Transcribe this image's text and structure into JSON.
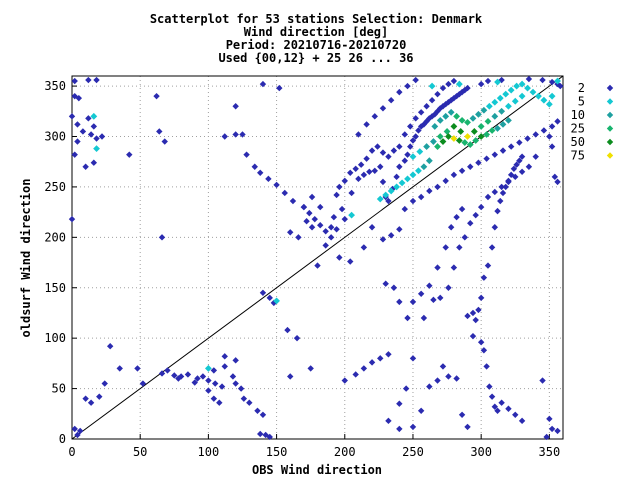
{
  "chart_data": {
    "type": "scatter",
    "title_lines": [
      "Scatterplot for   53 stations Selection: Denmark",
      "Wind direction [deg]",
      "Period: 20210716-20210720",
      "Used {00,12} + 25 26 ... 36"
    ],
    "xlabel": "OBS Wind direction",
    "ylabel": "oldsurf Wind direction",
    "xlim": [
      0,
      360
    ],
    "ylim": [
      0,
      360
    ],
    "xticks": [
      0,
      50,
      100,
      150,
      200,
      250,
      300,
      350
    ],
    "yticks": [
      0,
      50,
      100,
      150,
      200,
      250,
      300,
      350
    ],
    "grid": true,
    "diagonal_line": true,
    "legend_position": "right",
    "legend": [
      {
        "label": "2",
        "color": "#2b2bb0"
      },
      {
        "label": "5",
        "color": "#14c8d2"
      },
      {
        "label": "10",
        "color": "#1ea0a0"
      },
      {
        "label": "25",
        "color": "#18b46e"
      },
      {
        "label": "50",
        "color": "#0c8c1e"
      },
      {
        "label": "75",
        "color": "#f0e000"
      }
    ],
    "points": [
      [
        2,
        355
      ],
      [
        12,
        356
      ],
      [
        18,
        356
      ],
      [
        2,
        340
      ],
      [
        5,
        338
      ],
      [
        0,
        320
      ],
      [
        4,
        312
      ],
      [
        8,
        305
      ],
      [
        14,
        302
      ],
      [
        18,
        298
      ],
      [
        22,
        300
      ],
      [
        16,
        310
      ],
      [
        12,
        318
      ],
      [
        4,
        295
      ],
      [
        2,
        282
      ],
      [
        10,
        270
      ],
      [
        16,
        274
      ],
      [
        0,
        218
      ],
      [
        2,
        10
      ],
      [
        6,
        8
      ],
      [
        4,
        4
      ],
      [
        10,
        40
      ],
      [
        14,
        36
      ],
      [
        20,
        42
      ],
      [
        24,
        55
      ],
      [
        28,
        92
      ],
      [
        35,
        70
      ],
      [
        48,
        70
      ],
      [
        52,
        55
      ],
      [
        66,
        65
      ],
      [
        70,
        68
      ],
      [
        75,
        63
      ],
      [
        78,
        60
      ],
      [
        80,
        62
      ],
      [
        85,
        64
      ],
      [
        90,
        56
      ],
      [
        92,
        60
      ],
      [
        96,
        62
      ],
      [
        100,
        58
      ],
      [
        105,
        55
      ],
      [
        110,
        52
      ],
      [
        104,
        68
      ],
      [
        112,
        72
      ],
      [
        118,
        62
      ],
      [
        120,
        55
      ],
      [
        124,
        50
      ],
      [
        126,
        40
      ],
      [
        130,
        36
      ],
      [
        136,
        28
      ],
      [
        140,
        24
      ],
      [
        112,
        82
      ],
      [
        120,
        78
      ],
      [
        104,
        40
      ],
      [
        108,
        36
      ],
      [
        100,
        48
      ],
      [
        112,
        300
      ],
      [
        120,
        302
      ],
      [
        125,
        302
      ],
      [
        120,
        330
      ],
      [
        128,
        282
      ],
      [
        140,
        352
      ],
      [
        152,
        348
      ],
      [
        140,
        145
      ],
      [
        145,
        140
      ],
      [
        148,
        135
      ],
      [
        158,
        108
      ],
      [
        165,
        100
      ],
      [
        160,
        62
      ],
      [
        175,
        70
      ],
      [
        138,
        5
      ],
      [
        145,
        2
      ],
      [
        142,
        4
      ],
      [
        62,
        340
      ],
      [
        64,
        305
      ],
      [
        66,
        200
      ],
      [
        68,
        295
      ],
      [
        42,
        282
      ],
      [
        176,
        240
      ],
      [
        182,
        230
      ],
      [
        190,
        210
      ],
      [
        194,
        208
      ],
      [
        192,
        220
      ],
      [
        198,
        228
      ],
      [
        200,
        218
      ],
      [
        205,
        244
      ],
      [
        210,
        258
      ],
      [
        214,
        262
      ],
      [
        218,
        265
      ],
      [
        222,
        266
      ],
      [
        226,
        270
      ],
      [
        228,
        255
      ],
      [
        230,
        240
      ],
      [
        232,
        236
      ],
      [
        235,
        248
      ],
      [
        238,
        260
      ],
      [
        240,
        270
      ],
      [
        244,
        276
      ],
      [
        246,
        282
      ],
      [
        248,
        290
      ],
      [
        250,
        296
      ],
      [
        252,
        300
      ],
      [
        254,
        306
      ],
      [
        256,
        310
      ],
      [
        258,
        312
      ],
      [
        260,
        315
      ],
      [
        262,
        318
      ],
      [
        264,
        320
      ],
      [
        266,
        322
      ],
      [
        268,
        325
      ],
      [
        270,
        328
      ],
      [
        272,
        330
      ],
      [
        274,
        332
      ],
      [
        276,
        334
      ],
      [
        278,
        336
      ],
      [
        280,
        338
      ],
      [
        282,
        340
      ],
      [
        284,
        342
      ],
      [
        286,
        344
      ],
      [
        288,
        346
      ],
      [
        290,
        348
      ],
      [
        300,
        352
      ],
      [
        305,
        355
      ],
      [
        315,
        356
      ],
      [
        335,
        357
      ],
      [
        345,
        356
      ],
      [
        352,
        354
      ],
      [
        356,
        352
      ],
      [
        358,
        350
      ],
      [
        350,
        300
      ],
      [
        352,
        290
      ],
      [
        354,
        260
      ],
      [
        356,
        255
      ],
      [
        340,
        280
      ],
      [
        335,
        270
      ],
      [
        330,
        265
      ],
      [
        325,
        260
      ],
      [
        320,
        255
      ],
      [
        315,
        250
      ],
      [
        310,
        245
      ],
      [
        305,
        240
      ],
      [
        300,
        230
      ],
      [
        296,
        222
      ],
      [
        292,
        214
      ],
      [
        288,
        200
      ],
      [
        284,
        190
      ],
      [
        280,
        170
      ],
      [
        276,
        150
      ],
      [
        270,
        140
      ],
      [
        265,
        138
      ],
      [
        258,
        120
      ],
      [
        250,
        80
      ],
      [
        245,
        50
      ],
      [
        240,
        35
      ],
      [
        232,
        18
      ],
      [
        240,
        10
      ],
      [
        250,
        12
      ],
      [
        256,
        28
      ],
      [
        262,
        52
      ],
      [
        268,
        58
      ],
      [
        272,
        72
      ],
      [
        276,
        62
      ],
      [
        282,
        60
      ],
      [
        286,
        24
      ],
      [
        290,
        12
      ],
      [
        294,
        102
      ],
      [
        296,
        118
      ],
      [
        300,
        140
      ],
      [
        302,
        160
      ],
      [
        305,
        172
      ],
      [
        308,
        190
      ],
      [
        310,
        210
      ],
      [
        312,
        226
      ],
      [
        314,
        236
      ],
      [
        316,
        244
      ],
      [
        318,
        250
      ],
      [
        320,
        256
      ],
      [
        322,
        262
      ],
      [
        324,
        268
      ],
      [
        326,
        272
      ],
      [
        328,
        276
      ],
      [
        330,
        280
      ],
      [
        290,
        122
      ],
      [
        294,
        125
      ],
      [
        298,
        128
      ],
      [
        300,
        96
      ],
      [
        302,
        88
      ],
      [
        304,
        72
      ],
      [
        306,
        52
      ],
      [
        308,
        42
      ],
      [
        310,
        32
      ],
      [
        312,
        28
      ],
      [
        315,
        36
      ],
      [
        320,
        30
      ],
      [
        325,
        24
      ],
      [
        330,
        18
      ],
      [
        345,
        58
      ],
      [
        350,
        20
      ],
      [
        352,
        10
      ],
      [
        348,
        2
      ],
      [
        356,
        8
      ],
      [
        230,
        154
      ],
      [
        236,
        150
      ],
      [
        240,
        136
      ],
      [
        246,
        120
      ],
      [
        250,
        136
      ],
      [
        256,
        144
      ],
      [
        262,
        152
      ],
      [
        268,
        170
      ],
      [
        274,
        190
      ],
      [
        278,
        210
      ],
      [
        282,
        220
      ],
      [
        286,
        228
      ],
      [
        180,
        172
      ],
      [
        172,
        216
      ],
      [
        166,
        200
      ],
      [
        160,
        205
      ],
      [
        170,
        230
      ],
      [
        176,
        210
      ],
      [
        186,
        192
      ],
      [
        196,
        180
      ],
      [
        204,
        176
      ],
      [
        214,
        190
      ],
      [
        220,
        210
      ],
      [
        228,
        198
      ],
      [
        234,
        202
      ],
      [
        240,
        208
      ],
      [
        244,
        228
      ],
      [
        250,
        236
      ],
      [
        256,
        240
      ],
      [
        262,
        246
      ],
      [
        268,
        250
      ],
      [
        274,
        256
      ],
      [
        280,
        262
      ],
      [
        286,
        266
      ],
      [
        292,
        270
      ],
      [
        298,
        274
      ],
      [
        304,
        278
      ],
      [
        310,
        282
      ],
      [
        316,
        286
      ],
      [
        322,
        290
      ],
      [
        328,
        294
      ],
      [
        334,
        298
      ],
      [
        340,
        302
      ],
      [
        346,
        306
      ],
      [
        352,
        310
      ],
      [
        356,
        315
      ],
      [
        240,
        290
      ],
      [
        236,
        286
      ],
      [
        232,
        280
      ],
      [
        228,
        284
      ],
      [
        224,
        290
      ],
      [
        220,
        286
      ],
      [
        216,
        278
      ],
      [
        212,
        272
      ],
      [
        208,
        268
      ],
      [
        204,
        264
      ],
      [
        200,
        256
      ],
      [
        196,
        250
      ],
      [
        194,
        242
      ],
      [
        244,
        302
      ],
      [
        248,
        310
      ],
      [
        252,
        318
      ],
      [
        256,
        324
      ],
      [
        260,
        330
      ],
      [
        264,
        336
      ],
      [
        268,
        342
      ],
      [
        272,
        348
      ],
      [
        276,
        352
      ],
      [
        280,
        355
      ],
      [
        210,
        302
      ],
      [
        216,
        312
      ],
      [
        222,
        320
      ],
      [
        228,
        328
      ],
      [
        234,
        336
      ],
      [
        240,
        344
      ],
      [
        246,
        350
      ],
      [
        252,
        356
      ],
      [
        190,
        200
      ],
      [
        186,
        206
      ],
      [
        182,
        212
      ],
      [
        178,
        218
      ],
      [
        174,
        224
      ],
      [
        170,
        230
      ],
      [
        162,
        236
      ],
      [
        156,
        244
      ],
      [
        150,
        252
      ],
      [
        144,
        258
      ],
      [
        138,
        264
      ],
      [
        134,
        270
      ],
      [
        200,
        58
      ],
      [
        208,
        64
      ],
      [
        214,
        70
      ],
      [
        220,
        76
      ],
      [
        226,
        80
      ],
      [
        232,
        84
      ]
    ],
    "clusters": [
      {
        "x": 250,
        "y": 280,
        "n": 5
      },
      {
        "x": 255,
        "y": 285,
        "n": 5
      },
      {
        "x": 260,
        "y": 290,
        "n": 10
      },
      {
        "x": 265,
        "y": 295,
        "n": 10
      },
      {
        "x": 270,
        "y": 300,
        "n": 25
      },
      {
        "x": 275,
        "y": 305,
        "n": 25
      },
      {
        "x": 280,
        "y": 310,
        "n": 50
      },
      {
        "x": 285,
        "y": 305,
        "n": 50
      },
      {
        "x": 290,
        "y": 300,
        "n": 75
      },
      {
        "x": 295,
        "y": 305,
        "n": 50
      },
      {
        "x": 300,
        "y": 310,
        "n": 25
      },
      {
        "x": 305,
        "y": 315,
        "n": 25
      },
      {
        "x": 310,
        "y": 320,
        "n": 10
      },
      {
        "x": 315,
        "y": 325,
        "n": 10
      },
      {
        "x": 320,
        "y": 330,
        "n": 5
      },
      {
        "x": 325,
        "y": 335,
        "n": 5
      },
      {
        "x": 330,
        "y": 340,
        "n": 5
      },
      {
        "x": 268,
        "y": 290,
        "n": 25
      },
      {
        "x": 272,
        "y": 295,
        "n": 50
      },
      {
        "x": 276,
        "y": 300,
        "n": 50
      },
      {
        "x": 280,
        "y": 298,
        "n": 75
      },
      {
        "x": 284,
        "y": 296,
        "n": 50
      },
      {
        "x": 288,
        "y": 294,
        "n": 25
      },
      {
        "x": 292,
        "y": 292,
        "n": 25
      },
      {
        "x": 296,
        "y": 296,
        "n": 25
      },
      {
        "x": 300,
        "y": 300,
        "n": 50
      },
      {
        "x": 304,
        "y": 302,
        "n": 25
      },
      {
        "x": 308,
        "y": 306,
        "n": 25
      },
      {
        "x": 312,
        "y": 308,
        "n": 10
      },
      {
        "x": 316,
        "y": 312,
        "n": 10
      },
      {
        "x": 320,
        "y": 316,
        "n": 10
      },
      {
        "x": 262,
        "y": 276,
        "n": 10
      },
      {
        "x": 258,
        "y": 270,
        "n": 10
      },
      {
        "x": 254,
        "y": 266,
        "n": 5
      },
      {
        "x": 250,
        "y": 262,
        "n": 5
      },
      {
        "x": 246,
        "y": 258,
        "n": 5
      },
      {
        "x": 242,
        "y": 254,
        "n": 5
      },
      {
        "x": 238,
        "y": 250,
        "n": 5
      },
      {
        "x": 234,
        "y": 246,
        "n": 5
      },
      {
        "x": 230,
        "y": 242,
        "n": 5
      },
      {
        "x": 226,
        "y": 238,
        "n": 5
      },
      {
        "x": 266,
        "y": 310,
        "n": 10
      },
      {
        "x": 270,
        "y": 316,
        "n": 10
      },
      {
        "x": 274,
        "y": 320,
        "n": 10
      },
      {
        "x": 278,
        "y": 324,
        "n": 10
      },
      {
        "x": 282,
        "y": 320,
        "n": 25
      },
      {
        "x": 286,
        "y": 316,
        "n": 25
      },
      {
        "x": 290,
        "y": 314,
        "n": 25
      },
      {
        "x": 294,
        "y": 318,
        "n": 10
      },
      {
        "x": 298,
        "y": 322,
        "n": 10
      },
      {
        "x": 302,
        "y": 326,
        "n": 10
      },
      {
        "x": 306,
        "y": 330,
        "n": 5
      },
      {
        "x": 310,
        "y": 334,
        "n": 5
      },
      {
        "x": 314,
        "y": 338,
        "n": 5
      },
      {
        "x": 318,
        "y": 342,
        "n": 5
      },
      {
        "x": 322,
        "y": 346,
        "n": 5
      },
      {
        "x": 326,
        "y": 350,
        "n": 5
      },
      {
        "x": 330,
        "y": 352,
        "n": 5
      },
      {
        "x": 334,
        "y": 348,
        "n": 5
      },
      {
        "x": 338,
        "y": 344,
        "n": 5
      },
      {
        "x": 342,
        "y": 340,
        "n": 5
      },
      {
        "x": 346,
        "y": 336,
        "n": 5
      },
      {
        "x": 350,
        "y": 332,
        "n": 5
      },
      {
        "x": 16,
        "y": 320,
        "n": 5
      },
      {
        "x": 18,
        "y": 288,
        "n": 5
      },
      {
        "x": 100,
        "y": 70,
        "n": 5
      },
      {
        "x": 150,
        "y": 137,
        "n": 5
      },
      {
        "x": 205,
        "y": 222,
        "n": 5
      },
      {
        "x": 284,
        "y": 352,
        "n": 5
      },
      {
        "x": 312,
        "y": 354,
        "n": 5
      },
      {
        "x": 264,
        "y": 350,
        "n": 5
      },
      {
        "x": 352,
        "y": 340,
        "n": 5
      },
      {
        "x": 356,
        "y": 355,
        "n": 5
      }
    ]
  }
}
